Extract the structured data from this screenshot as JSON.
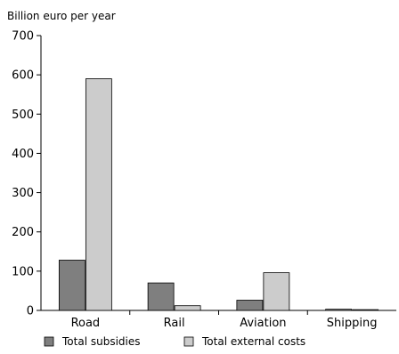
{
  "chart_data": {
    "type": "bar",
    "ylabel": "Billion euro per year",
    "categories": [
      "Road",
      "Rail",
      "Aviation",
      "Shipping"
    ],
    "yticks": [
      0,
      100,
      200,
      300,
      400,
      500,
      600,
      700
    ],
    "ylim": [
      0,
      700
    ],
    "grid": false,
    "legend_position": "bottom",
    "series": [
      {
        "name": "Total subsidies",
        "color": "#7f7f7f",
        "values": [
          128,
          70,
          26,
          3
        ]
      },
      {
        "name": "Total external costs",
        "color": "#cccccc",
        "values": [
          590,
          12,
          96,
          2
        ]
      }
    ]
  }
}
